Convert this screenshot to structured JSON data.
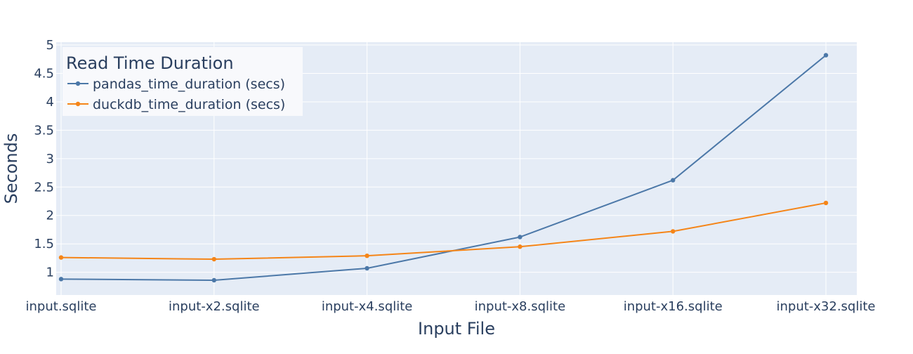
{
  "chart_data": {
    "type": "line",
    "xlabel": "Input File",
    "ylabel": "Seconds",
    "categories": [
      "input.sqlite",
      "input-x2.sqlite",
      "input-x4.sqlite",
      "input-x8.sqlite",
      "input-x16.sqlite",
      "input-x32.sqlite"
    ],
    "ylim": [
      0.6,
      5.05
    ],
    "yticks": [
      1,
      1.5,
      2,
      2.5,
      3,
      3.5,
      4,
      4.5,
      5
    ],
    "ytick_labels": [
      "1",
      "1.5",
      "2",
      "2.5",
      "3",
      "3.5",
      "4",
      "4.5",
      "5"
    ],
    "grid": true,
    "legend": {
      "title": "Read Time Duration",
      "placement": "top-left"
    },
    "series": [
      {
        "name": "pandas_time_duration (secs)",
        "color": "#4c78a8",
        "values": [
          0.88,
          0.86,
          1.07,
          1.62,
          2.62,
          4.82
        ]
      },
      {
        "name": "duckdb_time_duration (secs)",
        "color": "#f58518",
        "values": [
          1.26,
          1.23,
          1.29,
          1.45,
          1.72,
          2.22
        ]
      }
    ]
  },
  "theme": {
    "plot_background": "#e5ecf6",
    "grid_color": "#ffffff",
    "text_color": "#2a3f5f",
    "legend_background": "#f8f9fc"
  }
}
